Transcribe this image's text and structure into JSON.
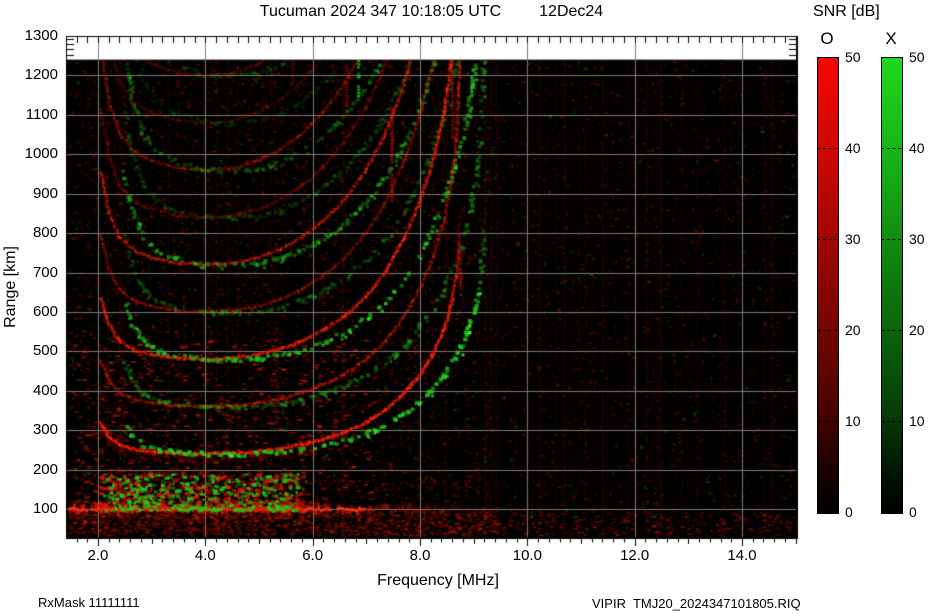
{
  "title": {
    "left": "Tucuman 2024 347 10:18:05 UTC",
    "right": "12Dec24"
  },
  "footer": {
    "left": "RxMask 11111111",
    "right": "VIPIR  TMJ20_2024347101805.RIQ"
  },
  "chart_data": {
    "type": "heatmap",
    "title": "Tucuman 2024 347 10:18:05 UTC   12Dec24",
    "xlabel": "Frequency [MHz]",
    "ylabel": "Range [km]",
    "xlim": [
      1.4,
      15.0
    ],
    "ylim": [
      30,
      1300
    ],
    "x_tick_values": [
      2,
      4,
      6,
      8,
      10,
      12,
      14
    ],
    "x_tick_labels": [
      "2.0",
      "4.0",
      "6.0",
      "8.0",
      "10.0",
      "12.0",
      "14.0"
    ],
    "y_tick_values": [
      100,
      200,
      300,
      400,
      500,
      600,
      700,
      800,
      900,
      1000,
      1100,
      1200,
      1300
    ],
    "grid": true,
    "grid_color": "#7d7d7d",
    "background_color": "#000000",
    "no_data_band_km": [
      1240,
      1300
    ],
    "colorbar": {
      "title": "SNR [dB]",
      "o_label": "O",
      "x_label": "X",
      "range": [
        0,
        50
      ],
      "ticks": [
        50,
        40,
        30,
        20,
        10,
        0
      ],
      "dashed_tick_values": [
        40,
        30,
        20,
        10
      ],
      "o_color_top": "#f50800",
      "x_color_top": "#1fd81c",
      "bottom_color": "#000000"
    },
    "ionogram": {
      "foF2_MHz": 8.8,
      "fxF2_MHz": 9.25,
      "x_mode_offset_MHz": 0.45,
      "o_mode_color": "#e11908",
      "x_mode_color": "#1ecd19",
      "f_layer_o_trace": [
        [
          2.05,
          318
        ],
        [
          2.2,
          285
        ],
        [
          2.4,
          263
        ],
        [
          2.7,
          251
        ],
        [
          3.0,
          246
        ],
        [
          3.5,
          241
        ],
        [
          4.0,
          240
        ],
        [
          4.5,
          241
        ],
        [
          5.0,
          246
        ],
        [
          5.4,
          253
        ],
        [
          5.8,
          263
        ],
        [
          6.2,
          277
        ],
        [
          6.6,
          295
        ],
        [
          7.0,
          320
        ],
        [
          7.35,
          350
        ],
        [
          7.7,
          392
        ],
        [
          8.0,
          440
        ],
        [
          8.25,
          494
        ],
        [
          8.45,
          554
        ],
        [
          8.58,
          614
        ],
        [
          8.68,
          690
        ],
        [
          8.73,
          780
        ],
        [
          8.75,
          860
        ]
      ],
      "hops": [
        {
          "mult": 5,
          "alpha": 0.2
        },
        {
          "mult": 4.5,
          "alpha": 0.15
        },
        {
          "mult": 4,
          "alpha": 0.32
        },
        {
          "mult": 3.5,
          "alpha": 0.22
        },
        {
          "mult": 3,
          "alpha": 0.55
        },
        {
          "mult": 2.5,
          "alpha": 0.33
        },
        {
          "mult": 2,
          "alpha": 0.8
        },
        {
          "mult": 1.5,
          "alpha": 0.45
        },
        {
          "mult": 1,
          "alpha": 1.0
        }
      ],
      "es_layer_km": 100,
      "es_strong_f_MHz": [
        1.45,
        6.0
      ],
      "es_weak_f_MHz": [
        6.0,
        9.4
      ],
      "es_second_hop_km": 200,
      "scatter_cloud": {
        "f_MHz": [
          2.0,
          5.8
        ],
        "range_km": [
          100,
          195
        ]
      },
      "mid_band_km": 168,
      "mid_band_f_MHz": [
        4.7,
        9.3
      ],
      "rfi_streaks": [
        {
          "f": 7.47,
          "r0": 880,
          "r1": 1120,
          "color": "red",
          "alpha": 0.7
        },
        {
          "f": 6.85,
          "r0": 1150,
          "r1": 1240,
          "color": "green",
          "alpha": 0.85
        },
        {
          "f": 6.63,
          "r0": 1100,
          "r1": 1240,
          "color": "red",
          "alpha": 0.5
        },
        {
          "f": 5.62,
          "r0": 1170,
          "r1": 1240,
          "color": "red",
          "alpha": 0.4
        },
        {
          "f": 8.6,
          "r0": 1040,
          "r1": 1240,
          "color": "red",
          "alpha": 0.5
        },
        {
          "f": 8.75,
          "r0": 640,
          "r1": 760,
          "color": "red",
          "alpha": 0.6
        },
        {
          "f": 5.33,
          "r0": 320,
          "r1": 560,
          "color": "red",
          "alpha": 0.3
        },
        {
          "f": 6.2,
          "r0": 560,
          "r1": 700,
          "color": "red",
          "alpha": 0.3
        },
        {
          "f": 7.9,
          "r0": 430,
          "r1": 530,
          "color": "red",
          "alpha": 0.35
        }
      ]
    }
  }
}
